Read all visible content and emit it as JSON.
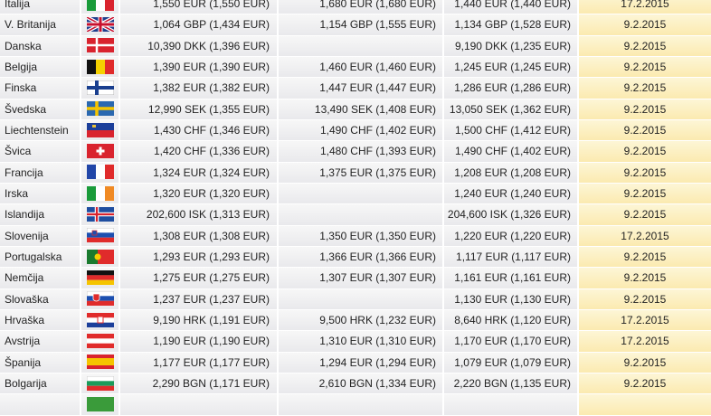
{
  "rows": [
    {
      "country": "Italija",
      "flag": "italy-flag-icon",
      "p1": "1,550 EUR (1,550 EUR)",
      "p2": "1,680 EUR (1,680 EUR)",
      "p3": "1,440 EUR (1,440 EUR)",
      "date": "17.2.2015"
    },
    {
      "country": "V. Britanija",
      "flag": "uk-flag-icon",
      "p1": "1,064 GBP (1,434 EUR)",
      "p2": "1,154 GBP (1,555 EUR)",
      "p3": "1,134 GBP (1,528 EUR)",
      "date": "9.2.2015"
    },
    {
      "country": "Danska",
      "flag": "denmark-flag-icon",
      "p1": "10,390 DKK (1,396 EUR)",
      "p2": "",
      "p3": "9,190 DKK (1,235 EUR)",
      "date": "9.2.2015"
    },
    {
      "country": "Belgija",
      "flag": "belgium-flag-icon",
      "p1": "1,390 EUR (1,390 EUR)",
      "p2": "1,460 EUR (1,460 EUR)",
      "p3": "1,245 EUR (1,245 EUR)",
      "date": "9.2.2015"
    },
    {
      "country": "Finska",
      "flag": "finland-flag-icon",
      "p1": "1,382 EUR (1,382 EUR)",
      "p2": "1,447 EUR (1,447 EUR)",
      "p3": "1,286 EUR (1,286 EUR)",
      "date": "9.2.2015"
    },
    {
      "country": "Švedska",
      "flag": "sweden-flag-icon",
      "p1": "12,990 SEK (1,355 EUR)",
      "p2": "13,490 SEK (1,408 EUR)",
      "p3": "13,050 SEK (1,362 EUR)",
      "date": "9.2.2015"
    },
    {
      "country": "Liechtenstein",
      "flag": "liechtenstein-flag-icon",
      "p1": "1,430 CHF (1,346 EUR)",
      "p2": "1,490 CHF (1,402 EUR)",
      "p3": "1,500 CHF (1,412 EUR)",
      "date": "9.2.2015"
    },
    {
      "country": "Švica",
      "flag": "switzerland-flag-icon",
      "p1": "1,420 CHF (1,336 EUR)",
      "p2": "1,480 CHF (1,393 EUR)",
      "p3": "1,490 CHF (1,402 EUR)",
      "date": "9.2.2015"
    },
    {
      "country": "Francija",
      "flag": "france-flag-icon",
      "p1": "1,324 EUR (1,324 EUR)",
      "p2": "1,375 EUR (1,375 EUR)",
      "p3": "1,208 EUR (1,208 EUR)",
      "date": "9.2.2015"
    },
    {
      "country": "Irska",
      "flag": "ireland-flag-icon",
      "p1": "1,320 EUR (1,320 EUR)",
      "p2": "",
      "p3": "1,240 EUR (1,240 EUR)",
      "date": "9.2.2015"
    },
    {
      "country": "Islandija",
      "flag": "iceland-flag-icon",
      "p1": "202,600 ISK (1,313 EUR)",
      "p2": "",
      "p3": "204,600 ISK (1,326 EUR)",
      "date": "9.2.2015"
    },
    {
      "country": "Slovenija",
      "flag": "slovenia-flag-icon",
      "p1": "1,308 EUR (1,308 EUR)",
      "p2": "1,350 EUR (1,350 EUR)",
      "p3": "1,220 EUR (1,220 EUR)",
      "date": "17.2.2015"
    },
    {
      "country": "Portugalska",
      "flag": "portugal-flag-icon",
      "p1": "1,293 EUR (1,293 EUR)",
      "p2": "1,366 EUR (1,366 EUR)",
      "p3": "1,117 EUR (1,117 EUR)",
      "date": "9.2.2015"
    },
    {
      "country": "Nemčija",
      "flag": "germany-flag-icon",
      "p1": "1,275 EUR (1,275 EUR)",
      "p2": "1,307 EUR (1,307 EUR)",
      "p3": "1,161 EUR (1,161 EUR)",
      "date": "9.2.2015"
    },
    {
      "country": "Slovaška",
      "flag": "slovakia-flag-icon",
      "p1": "1,237 EUR (1,237 EUR)",
      "p2": "",
      "p3": "1,130 EUR (1,130 EUR)",
      "date": "9.2.2015"
    },
    {
      "country": "Hrvaška",
      "flag": "croatia-flag-icon",
      "p1": "9,190 HRK (1,191 EUR)",
      "p2": "9,500 HRK (1,232 EUR)",
      "p3": "8,640 HRK (1,120 EUR)",
      "date": "17.2.2015"
    },
    {
      "country": "Avstrija",
      "flag": "austria-flag-icon",
      "p1": "1,190 EUR (1,190 EUR)",
      "p2": "1,310 EUR (1,310 EUR)",
      "p3": "1,170 EUR (1,170 EUR)",
      "date": "17.2.2015"
    },
    {
      "country": "Španija",
      "flag": "spain-flag-icon",
      "p1": "1,177 EUR (1,177 EUR)",
      "p2": "1,294 EUR (1,294 EUR)",
      "p3": "1,079 EUR (1,079 EUR)",
      "date": "9.2.2015"
    },
    {
      "country": "Bolgarija",
      "flag": "bulgaria-flag-icon",
      "p1": "2,290 BGN (1,171 EUR)",
      "p2": "2,610 BGN (1,334 EUR)",
      "p3": "2,220 BGN (1,135 EUR)",
      "date": "9.2.2015"
    }
  ]
}
